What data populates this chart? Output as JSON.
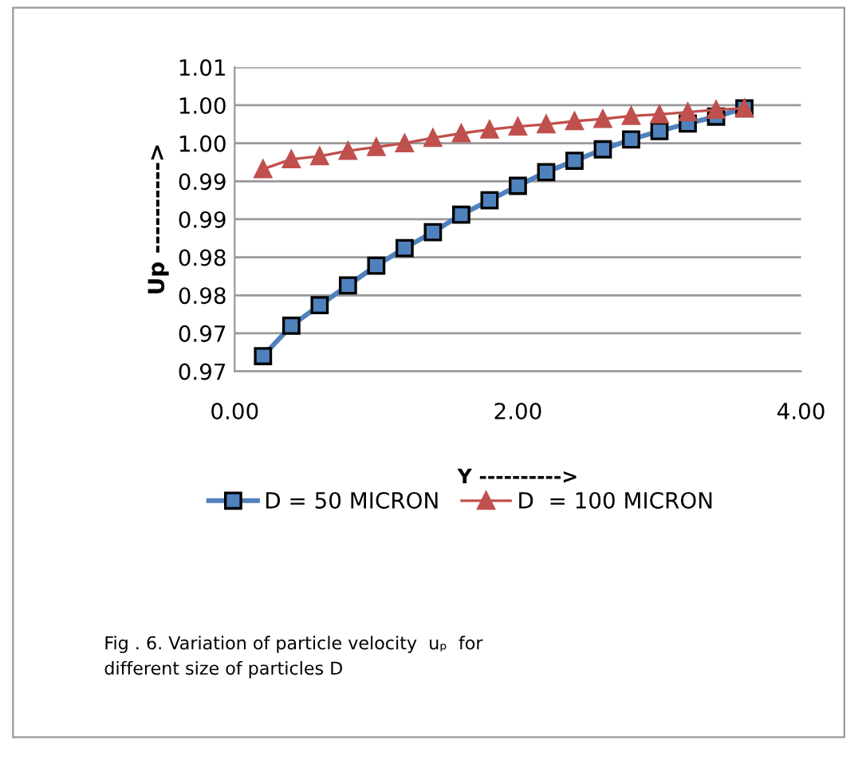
{
  "chart_data": {
    "type": "line",
    "xlabel": "Y ---------->",
    "ylabel": "Up ---------->",
    "x": [
      0.2,
      0.4,
      0.6,
      0.8,
      1.0,
      1.2,
      1.4,
      1.6,
      1.8,
      2.0,
      2.2,
      2.4,
      2.6,
      2.8,
      3.0,
      3.2,
      3.4,
      3.6
    ],
    "series": [
      {
        "name": "D = 50 MICRON",
        "color": "#4f81bd",
        "marker": "square",
        "values": [
          0.967,
          0.971,
          0.9737,
          0.9763,
          0.9789,
          0.9812,
          0.9833,
          0.9856,
          0.9875,
          0.9894,
          0.9912,
          0.9927,
          0.9942,
          0.9955,
          0.9966,
          0.9976,
          0.9985,
          0.9996
        ]
      },
      {
        "name": "D  = 100 MICRON",
        "color": "#c0504d",
        "marker": "triangle",
        "values": [
          0.9916,
          0.9929,
          0.9933,
          0.994,
          0.9945,
          0.995,
          0.9957,
          0.9963,
          0.9968,
          0.9972,
          0.9975,
          0.9979,
          0.9982,
          0.9986,
          0.9988,
          0.9991,
          0.9994,
          0.9996
        ]
      }
    ],
    "xlim": [
      0,
      4
    ],
    "xticks": [
      {
        "value": 0,
        "label": "0.00"
      },
      {
        "value": 2,
        "label": "2.00"
      },
      {
        "value": 4,
        "label": "4.00"
      }
    ],
    "ylim": [
      0.965,
      1.005
    ],
    "yticks": [
      {
        "value": 0.965,
        "label": "0.97"
      },
      {
        "value": 0.97,
        "label": "0.97"
      },
      {
        "value": 0.975,
        "label": "0.98"
      },
      {
        "value": 0.98,
        "label": "0.98"
      },
      {
        "value": 0.985,
        "label": "0.99"
      },
      {
        "value": 0.99,
        "label": "0.99"
      },
      {
        "value": 0.995,
        "label": "1.00"
      },
      {
        "value": 1.0,
        "label": "1.00"
      },
      {
        "value": 1.005,
        "label": "1.01"
      }
    ],
    "grid": "y",
    "legend": "bottom",
    "annotations": [
      "Fig . 6. Variation of particle velocity  uₚ  for\ndifferent size of particles D"
    ]
  }
}
